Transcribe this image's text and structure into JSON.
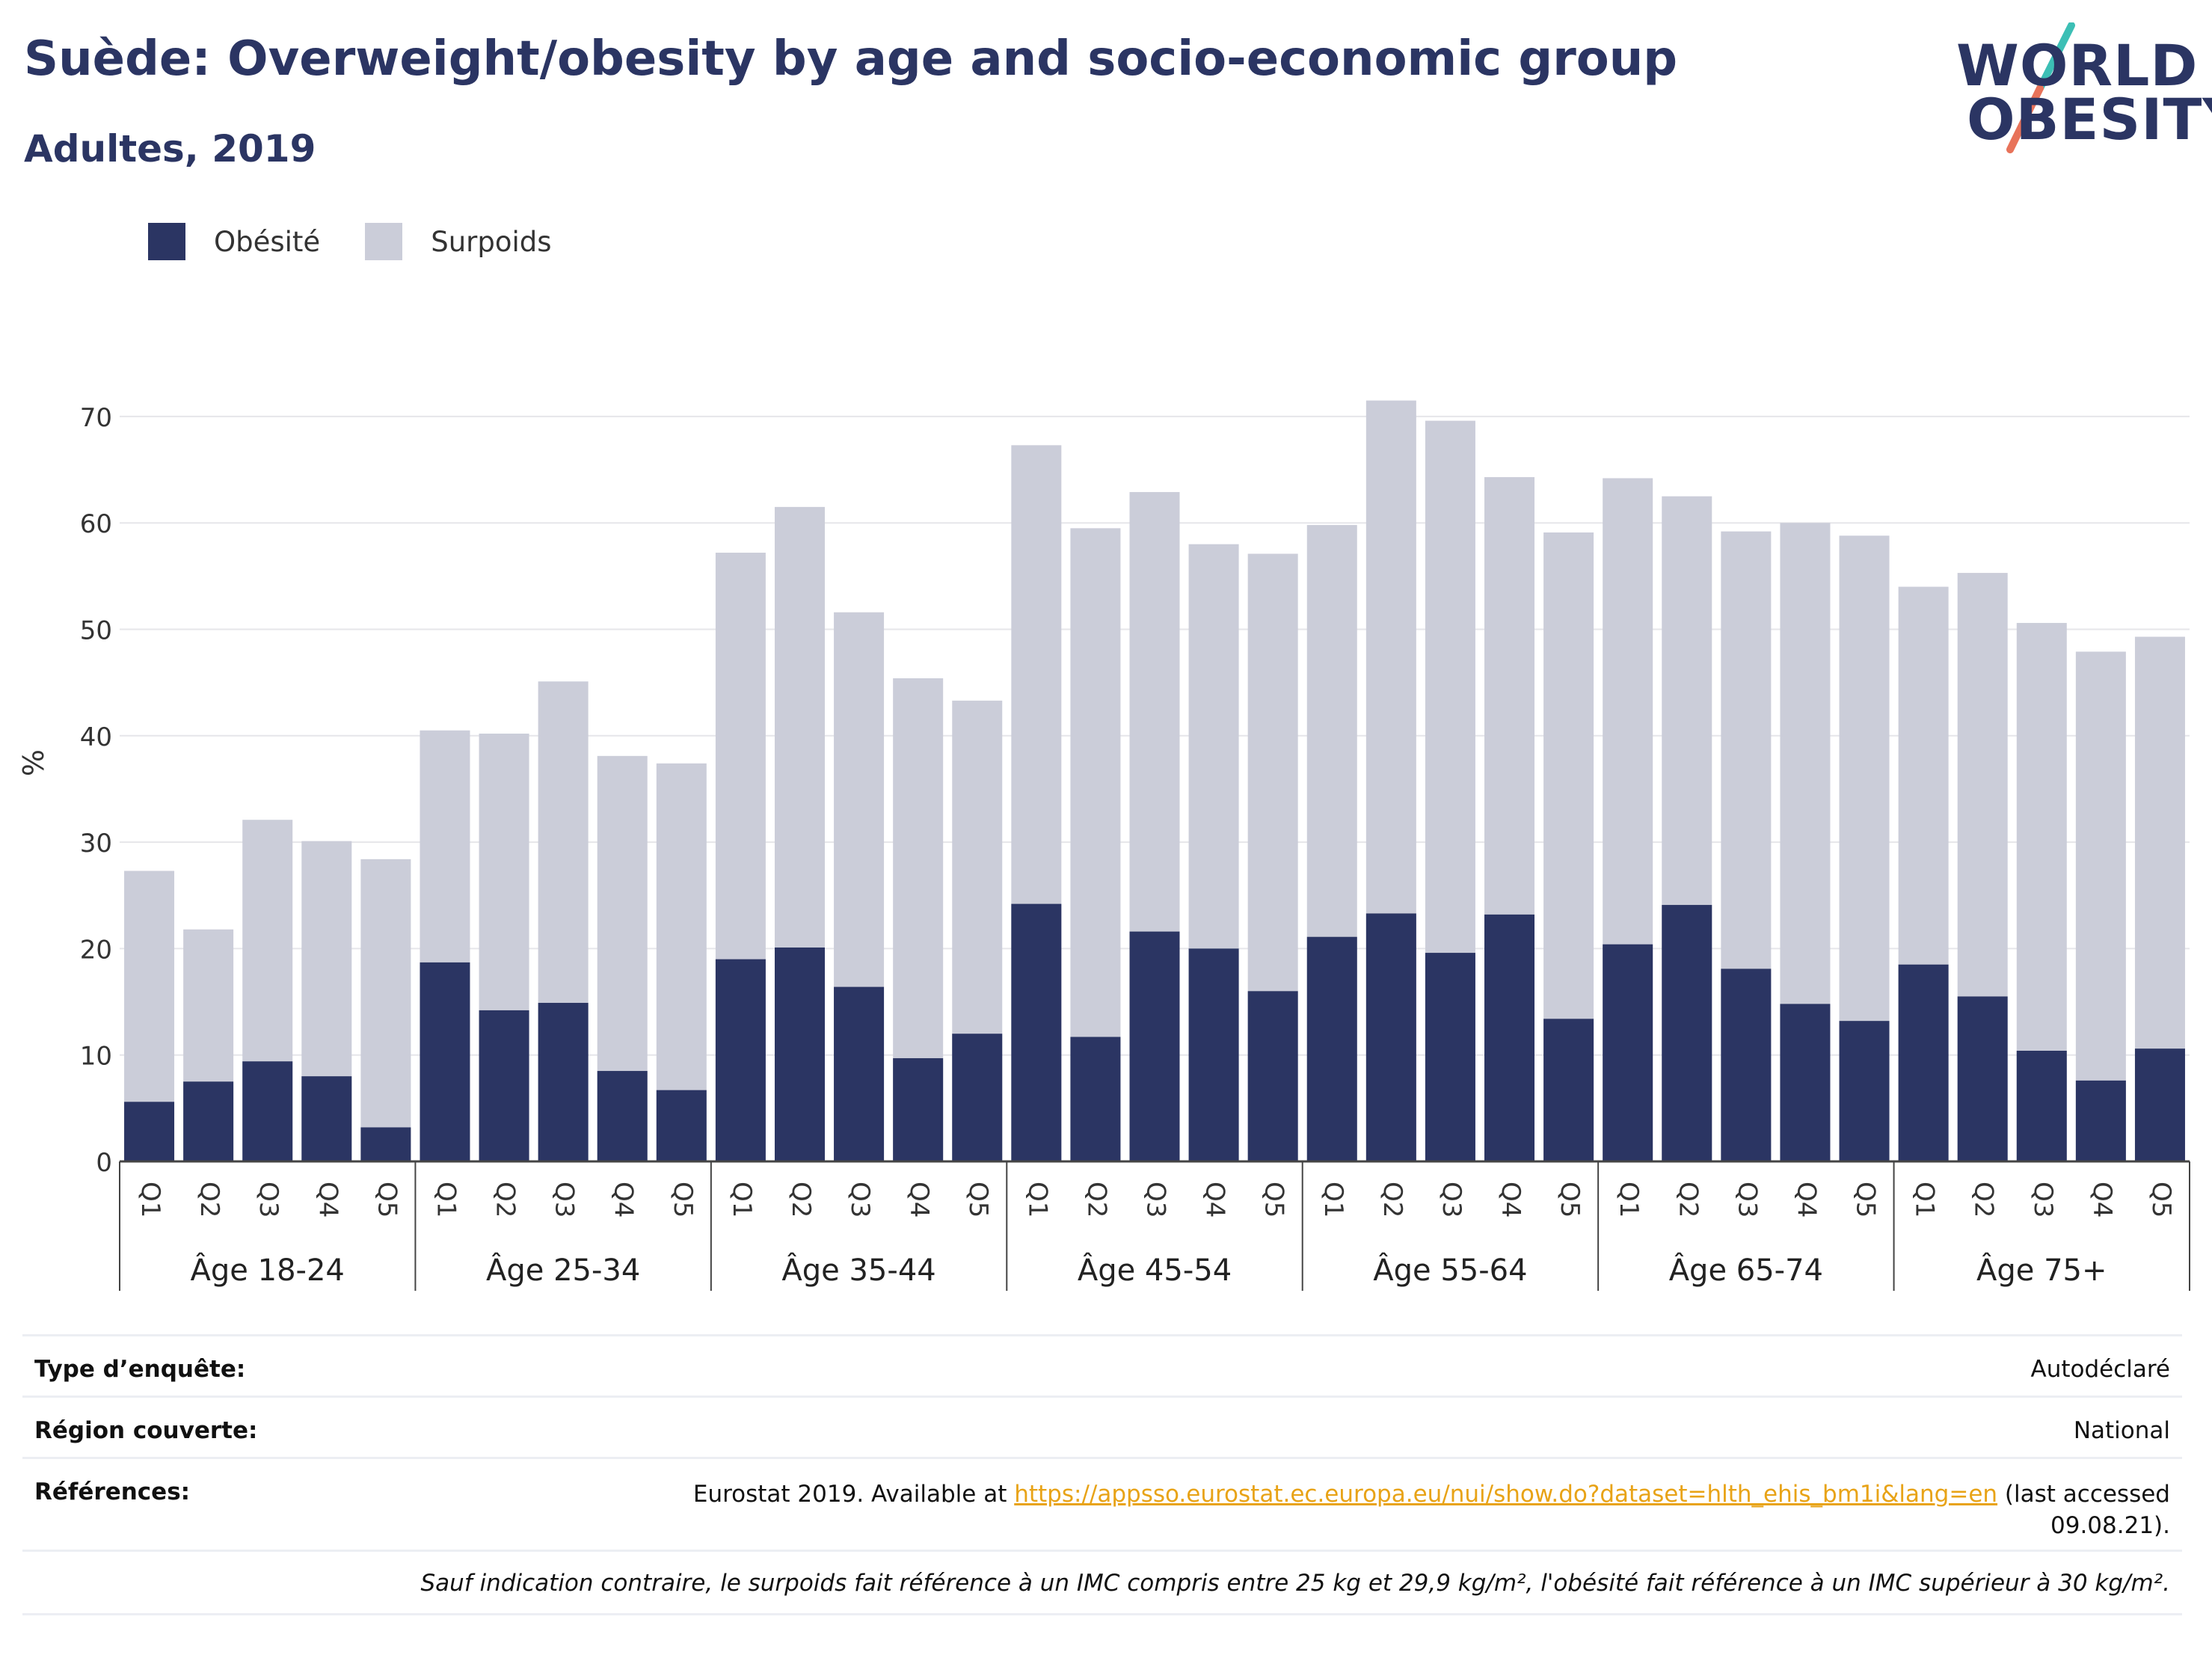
{
  "header": {
    "title": "Suède: Overweight/obesity by age and socio-economic group",
    "subtitle": "Adultes, 2019",
    "logo_line1": "WORLD",
    "logo_line2": "OBESITY"
  },
  "colors": {
    "obesity": "#2b3563",
    "overweight": "#cbcdd9",
    "text": "#2b3563",
    "logo_accent_teal": "#3cbfb5",
    "logo_accent_red": "#e8735a",
    "link": "#e8a317"
  },
  "legend": {
    "obesity_label": "Obésité",
    "overweight_label": "Surpoids"
  },
  "chart_data": {
    "type": "bar",
    "stacked": false,
    "overlay": true,
    "ylabel": "%",
    "ylim": [
      0,
      75
    ],
    "yticks": [
      0,
      10,
      20,
      30,
      40,
      50,
      60,
      70
    ],
    "grid": true,
    "legend_position": "top-left",
    "groups": [
      "Âge 18-24",
      "Âge 25-34",
      "Âge 35-44",
      "Âge 45-54",
      "Âge 55-64",
      "Âge 65-74",
      "Âge 75+"
    ],
    "categories": [
      "Q1",
      "Q2",
      "Q3",
      "Q4",
      "Q5"
    ],
    "series": [
      {
        "name": "Obésité",
        "values": [
          [
            5.6,
            7.5,
            9.4,
            8.0,
            3.2
          ],
          [
            18.7,
            14.2,
            14.9,
            8.5,
            6.7
          ],
          [
            19.0,
            20.1,
            16.4,
            9.7,
            12.0
          ],
          [
            24.2,
            11.7,
            21.6,
            20.0,
            16.0
          ],
          [
            21.1,
            23.3,
            19.6,
            23.2,
            13.4
          ],
          [
            20.4,
            24.1,
            18.1,
            14.8,
            13.2
          ],
          [
            18.5,
            15.5,
            10.4,
            7.6,
            10.6
          ]
        ]
      },
      {
        "name": "Surpoids",
        "values": [
          [
            27.3,
            21.8,
            32.1,
            30.1,
            28.4
          ],
          [
            40.5,
            40.2,
            45.1,
            38.1,
            37.4
          ],
          [
            57.2,
            61.5,
            51.6,
            45.4,
            43.3
          ],
          [
            67.3,
            59.5,
            62.9,
            58.0,
            57.1
          ],
          [
            59.8,
            71.5,
            69.6,
            64.3,
            59.1
          ],
          [
            64.2,
            62.5,
            59.2,
            60.0,
            58.8
          ],
          [
            54.0,
            55.3,
            50.6,
            47.9,
            49.3
          ]
        ]
      }
    ]
  },
  "info": {
    "survey_type_label": "Type d’enquête:",
    "survey_type_value": "Autodéclaré",
    "region_label": "Région couverte:",
    "region_value": "National",
    "references_label": "Références:",
    "references_prefix": "Eurostat 2019. Available at ",
    "references_link": "https://appsso.eurostat.ec.europa.eu/nui/show.do?dataset=hlth_ehis_bm1i&lang=en",
    "references_suffix": " (last accessed",
    "references_date": "09.08.21).",
    "note": "Sauf indication contraire, le surpoids fait référence à un IMC compris entre 25 kg et 29,9 kg/m², l'obésité fait référence à un IMC supérieur à 30 kg/m²."
  }
}
